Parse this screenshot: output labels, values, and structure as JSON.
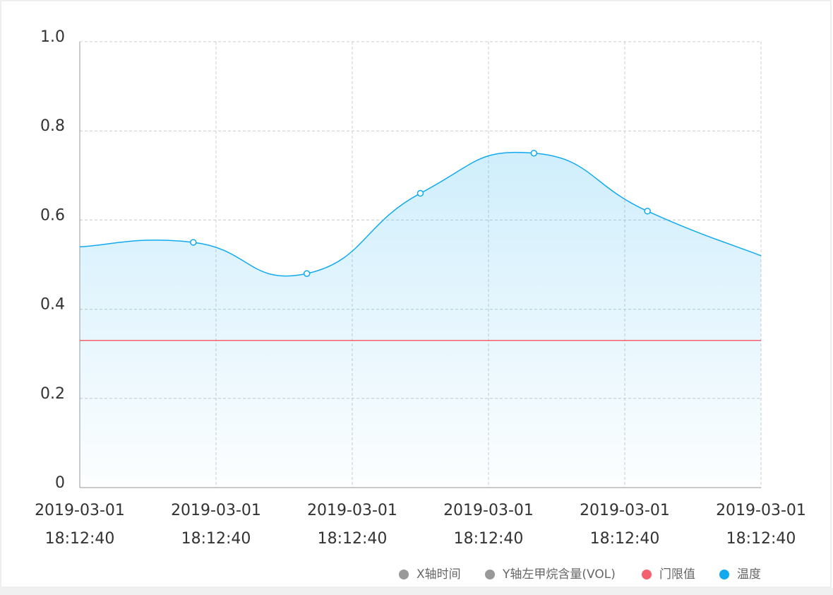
{
  "chart_data": {
    "type": "line",
    "x_labels": [
      "2019-03-01 18:12:40",
      "2019-03-01 18:12:40",
      "2019-03-01 18:12:40",
      "2019-03-01 18:12:40",
      "2019-03-01 18:12:40",
      "2019-03-01 18:12:40"
    ],
    "ylim": [
      0,
      1
    ],
    "yticks": [
      0,
      0.2,
      0.4,
      0.6,
      0.8,
      {
        "value": 1,
        "label": "1.0"
      }
    ],
    "grid": true,
    "series": [
      {
        "name": "温度",
        "color": "#11aaf0",
        "values": [
          0.54,
          0.55,
          0.48,
          0.66,
          0.75,
          0.62,
          0.52
        ]
      },
      {
        "name": "门限值",
        "color": "#f5606e",
        "value": 0.33
      }
    ],
    "legend": [
      {
        "name": "X轴时间",
        "color": "#999999"
      },
      {
        "name": "Y轴左甲烷含量(VOL)",
        "color": "#999999"
      },
      {
        "name": "门限值",
        "color": "#f5606e"
      },
      {
        "name": "温度",
        "color": "#11aaf0"
      }
    ],
    "legend_position": "bottom-right"
  }
}
